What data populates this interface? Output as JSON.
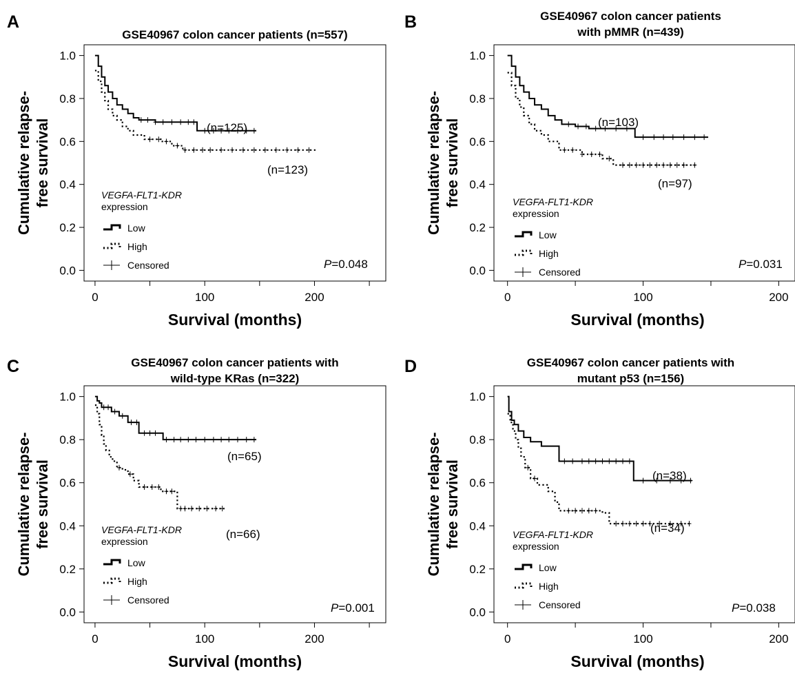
{
  "chart_data": [
    {
      "type": "line",
      "panel_letter": "A",
      "title": [
        "GSE40967 colon cancer patients (n=557)"
      ],
      "xlabel": "Survival (months)",
      "ylabel": [
        "Cumulative relapse-",
        "free survival"
      ],
      "xlim": [
        -10,
        265
      ],
      "ylim": [
        -0.05,
        1.05
      ],
      "xticks": [
        0,
        100,
        200
      ],
      "yticks": [
        "0.0",
        "0.2",
        "0.4",
        "0.6",
        "0.8",
        "1.0"
      ],
      "legend": {
        "title_italic": "VEGFA-FLT1-KDR",
        "title_rest": "expression",
        "items": [
          "Low",
          "High",
          "Censored"
        ],
        "position": "bottom-left"
      },
      "p_value": {
        "prefix": "P",
        "value": "=0.048"
      },
      "series": [
        {
          "name": "Low",
          "n_label": "(n=125)",
          "style": "solid",
          "x": [
            0,
            3,
            6,
            9,
            12,
            16,
            20,
            25,
            30,
            35,
            40,
            45,
            55,
            65,
            93,
            147
          ],
          "y": [
            1.0,
            0.95,
            0.9,
            0.86,
            0.83,
            0.8,
            0.77,
            0.75,
            0.73,
            0.71,
            0.7,
            0.7,
            0.69,
            0.69,
            0.65,
            0.65
          ],
          "censored_x": [
            42,
            48,
            55,
            62,
            70,
            78,
            85,
            90,
            100,
            108,
            115,
            122,
            130,
            138,
            145
          ]
        },
        {
          "name": "High",
          "n_label": "(n=123)",
          "style": "dotted",
          "x": [
            0,
            3,
            6,
            9,
            12,
            16,
            20,
            25,
            30,
            35,
            45,
            60,
            70,
            80,
            202
          ],
          "y": [
            0.93,
            0.88,
            0.83,
            0.79,
            0.75,
            0.72,
            0.7,
            0.67,
            0.65,
            0.63,
            0.61,
            0.6,
            0.58,
            0.56,
            0.56
          ],
          "censored_x": [
            50,
            58,
            65,
            75,
            82,
            90,
            98,
            105,
            115,
            125,
            135,
            145,
            155,
            165,
            175,
            185,
            195
          ]
        }
      ]
    },
    {
      "type": "line",
      "panel_letter": "B",
      "title": [
        "GSE40967 colon cancer patients",
        "with pMMR (n=439)"
      ],
      "xlabel": "Survival (months)",
      "ylabel": [
        "Cumulative relapse-",
        "free survival"
      ],
      "xlim": [
        -10,
        212
      ],
      "ylim": [
        -0.05,
        1.05
      ],
      "xticks": [
        0,
        100,
        200
      ],
      "yticks": [
        "0.0",
        "0.2",
        "0.4",
        "0.6",
        "0.8",
        "1.0"
      ],
      "legend": {
        "title_italic": "VEGFA-FLT1-KDR",
        "title_rest": "expression",
        "items": [
          "Low",
          "High",
          "Censored"
        ],
        "position": "bottom-left"
      },
      "p_value": {
        "prefix": "P",
        "value": "=0.031"
      },
      "series": [
        {
          "name": "Low",
          "n_label": "(n=103)",
          "style": "solid",
          "x": [
            0,
            3,
            6,
            9,
            12,
            16,
            20,
            25,
            30,
            35,
            40,
            50,
            60,
            75,
            94,
            148
          ],
          "y": [
            1.0,
            0.95,
            0.9,
            0.86,
            0.83,
            0.8,
            0.77,
            0.75,
            0.72,
            0.7,
            0.68,
            0.67,
            0.66,
            0.66,
            0.62,
            0.62
          ],
          "censored_x": [
            45,
            52,
            58,
            65,
            72,
            80,
            88,
            100,
            108,
            115,
            122,
            130,
            138,
            145
          ]
        },
        {
          "name": "High",
          "n_label": "(n=97)",
          "style": "dotted",
          "x": [
            0,
            3,
            6,
            9,
            12,
            16,
            20,
            25,
            30,
            38,
            55,
            70,
            78,
            140
          ],
          "y": [
            0.92,
            0.86,
            0.8,
            0.76,
            0.72,
            0.68,
            0.65,
            0.63,
            0.6,
            0.56,
            0.54,
            0.52,
            0.49,
            0.49
          ],
          "censored_x": [
            42,
            48,
            55,
            62,
            68,
            75,
            85,
            90,
            95,
            100,
            105,
            110,
            115,
            120,
            125,
            130,
            138
          ]
        }
      ]
    },
    {
      "type": "line",
      "panel_letter": "C",
      "title": [
        "GSE40967 colon cancer patients with",
        "wild-type KRas (n=322)"
      ],
      "xlabel": "Survival (months)",
      "ylabel": [
        "Cumulative relapse-",
        "free survival"
      ],
      "xlim": [
        -10,
        265
      ],
      "ylim": [
        -0.05,
        1.05
      ],
      "xticks": [
        0,
        100,
        200
      ],
      "yticks": [
        "0.0",
        "0.2",
        "0.4",
        "0.6",
        "0.8",
        "1.0"
      ],
      "legend": {
        "title_italic": "VEGFA-FLT1-KDR",
        "title_rest": "expression",
        "items": [
          "Low",
          "High",
          "Censored"
        ],
        "position": "bottom-left"
      },
      "p_value": {
        "prefix": "P",
        "value": "=0.001"
      },
      "series": [
        {
          "name": "Low",
          "n_label": "(n=65)",
          "style": "solid",
          "x": [
            0,
            2,
            4,
            6,
            15,
            22,
            30,
            40,
            62,
            147
          ],
          "y": [
            1.0,
            0.98,
            0.97,
            0.95,
            0.93,
            0.91,
            0.88,
            0.83,
            0.8,
            0.8
          ],
          "censored_x": [
            8,
            12,
            18,
            25,
            33,
            38,
            45,
            50,
            55,
            65,
            72,
            78,
            85,
            92,
            100,
            108,
            115,
            122,
            130,
            138,
            145
          ]
        },
        {
          "name": "High",
          "n_label": "(n=66)",
          "style": "dotted",
          "x": [
            0,
            2,
            4,
            6,
            8,
            10,
            13,
            16,
            20,
            25,
            30,
            35,
            40,
            50,
            60,
            75,
            118
          ],
          "y": [
            0.96,
            0.92,
            0.87,
            0.82,
            0.78,
            0.75,
            0.72,
            0.7,
            0.67,
            0.66,
            0.64,
            0.61,
            0.58,
            0.58,
            0.56,
            0.48,
            0.48
          ],
          "censored_x": [
            22,
            32,
            45,
            52,
            58,
            65,
            70,
            78,
            82,
            88,
            95,
            102,
            110,
            116
          ]
        }
      ]
    },
    {
      "type": "line",
      "panel_letter": "D",
      "title": [
        "GSE40967 colon cancer patients with",
        "mutant p53 (n=156)"
      ],
      "xlabel": "Survival (months)",
      "ylabel": [
        "Cumulative relapse-",
        "free survival"
      ],
      "xlim": [
        -10,
        212
      ],
      "ylim": [
        -0.05,
        1.05
      ],
      "xticks": [
        0,
        100,
        200
      ],
      "yticks": [
        "0.0",
        "0.2",
        "0.4",
        "0.6",
        "0.8",
        "1.0"
      ],
      "legend": {
        "title_italic": "VEGFA-FLT1-KDR",
        "title_rest": "expression",
        "items": [
          "Low",
          "High",
          "Censored"
        ],
        "position": "bottom-left"
      },
      "p_value": {
        "prefix": "P",
        "value": "=0.038"
      },
      "series": [
        {
          "name": "Low",
          "n_label": "(n=38)",
          "style": "solid",
          "x": [
            0,
            1,
            3,
            5,
            8,
            12,
            17,
            25,
            38,
            93,
            136
          ],
          "y": [
            1.0,
            0.93,
            0.89,
            0.87,
            0.84,
            0.81,
            0.79,
            0.77,
            0.7,
            0.61,
            0.61
          ],
          "censored_x": [
            42,
            48,
            55,
            60,
            65,
            70,
            75,
            80,
            85,
            90,
            100,
            110,
            120,
            128,
            135
          ]
        },
        {
          "name": "High",
          "n_label": "(n=34)",
          "style": "dotted",
          "x": [
            0,
            2,
            4,
            6,
            8,
            10,
            13,
            17,
            22,
            30,
            35,
            38,
            70,
            75,
            136
          ],
          "y": [
            0.92,
            0.88,
            0.84,
            0.8,
            0.76,
            0.72,
            0.67,
            0.62,
            0.59,
            0.56,
            0.51,
            0.47,
            0.46,
            0.41,
            0.41
          ],
          "censored_x": [
            15,
            20,
            45,
            50,
            55,
            60,
            65,
            80,
            85,
            90,
            95,
            100,
            105,
            112,
            120,
            128,
            134
          ]
        }
      ]
    }
  ]
}
